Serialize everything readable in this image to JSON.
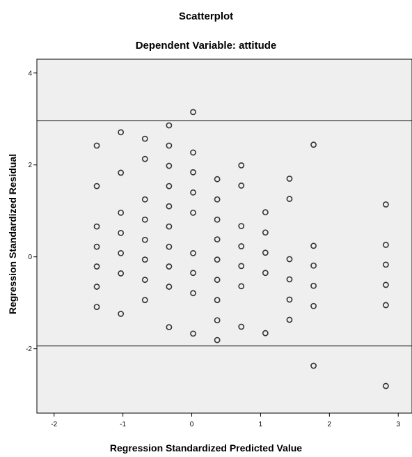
{
  "chart_data": {
    "type": "scatter",
    "title": "Scatterplot",
    "subtitle": "Dependent Variable: attitude",
    "xlabel": "Regression Standardized Predicted Value",
    "ylabel": "Regression Standardized Residual",
    "xlim": [
      -2.25,
      3.2
    ],
    "ylim": [
      -3.4,
      4.3
    ],
    "x_ticks": [
      "-2",
      "-1",
      "0",
      "1",
      "2",
      "3"
    ],
    "y_ticks": [
      "4",
      "2",
      "0",
      "-2"
    ],
    "grid": false,
    "reference_lines_y": [
      2.96,
      -1.94
    ],
    "colors": {
      "plot_background": "#efefef",
      "marker_stroke": "#333333"
    },
    "points": [
      [
        -1.38,
        2.42
      ],
      [
        -1.38,
        1.54
      ],
      [
        -1.38,
        0.66
      ],
      [
        -1.38,
        0.22
      ],
      [
        -1.38,
        -0.21
      ],
      [
        -1.38,
        -0.65
      ],
      [
        -1.38,
        -1.09
      ],
      [
        -1.03,
        2.71
      ],
      [
        -1.03,
        1.83
      ],
      [
        -1.03,
        0.96
      ],
      [
        -1.03,
        0.52
      ],
      [
        -1.03,
        0.08
      ],
      [
        -1.03,
        -0.36
      ],
      [
        -1.03,
        -1.24
      ],
      [
        -0.68,
        2.57
      ],
      [
        -0.68,
        2.13
      ],
      [
        -0.68,
        1.25
      ],
      [
        -0.68,
        0.81
      ],
      [
        -0.68,
        0.37
      ],
      [
        -0.68,
        -0.06
      ],
      [
        -0.68,
        -0.5
      ],
      [
        -0.68,
        -0.94
      ],
      [
        -0.33,
        2.86
      ],
      [
        -0.33,
        2.42
      ],
      [
        -0.33,
        1.98
      ],
      [
        -0.33,
        1.54
      ],
      [
        -0.33,
        1.1
      ],
      [
        -0.33,
        0.66
      ],
      [
        -0.33,
        0.22
      ],
      [
        -0.33,
        -0.21
      ],
      [
        -0.33,
        -0.65
      ],
      [
        -0.33,
        -1.53
      ],
      [
        0.02,
        3.15
      ],
      [
        0.02,
        2.27
      ],
      [
        0.02,
        1.84
      ],
      [
        0.02,
        1.4
      ],
      [
        0.02,
        0.96
      ],
      [
        0.02,
        0.08
      ],
      [
        0.02,
        -0.35
      ],
      [
        0.02,
        -0.79
      ],
      [
        0.02,
        -1.67
      ],
      [
        0.37,
        1.69
      ],
      [
        0.37,
        1.25
      ],
      [
        0.37,
        0.81
      ],
      [
        0.37,
        0.38
      ],
      [
        0.37,
        -0.06
      ],
      [
        0.37,
        -0.5
      ],
      [
        0.37,
        -0.94
      ],
      [
        0.37,
        -1.38
      ],
      [
        0.37,
        -1.81
      ],
      [
        0.72,
        1.99
      ],
      [
        0.72,
        1.55
      ],
      [
        0.72,
        0.67
      ],
      [
        0.72,
        0.23
      ],
      [
        0.72,
        -0.2
      ],
      [
        0.72,
        -0.64
      ],
      [
        0.72,
        -1.52
      ],
      [
        1.07,
        0.97
      ],
      [
        1.07,
        0.53
      ],
      [
        1.07,
        0.09
      ],
      [
        1.07,
        -0.35
      ],
      [
        1.07,
        -1.66
      ],
      [
        1.42,
        1.7
      ],
      [
        1.42,
        1.26
      ],
      [
        1.42,
        -0.05
      ],
      [
        1.42,
        -0.49
      ],
      [
        1.42,
        -0.93
      ],
      [
        1.42,
        -1.37
      ],
      [
        1.77,
        2.44
      ],
      [
        1.77,
        0.24
      ],
      [
        1.77,
        -0.19
      ],
      [
        1.77,
        -0.63
      ],
      [
        1.77,
        -1.07
      ],
      [
        1.77,
        -2.37
      ],
      [
        2.82,
        1.14
      ],
      [
        2.82,
        0.26
      ],
      [
        2.82,
        -0.17
      ],
      [
        2.82,
        -0.61
      ],
      [
        2.82,
        -1.05
      ],
      [
        2.82,
        -2.81
      ]
    ]
  }
}
